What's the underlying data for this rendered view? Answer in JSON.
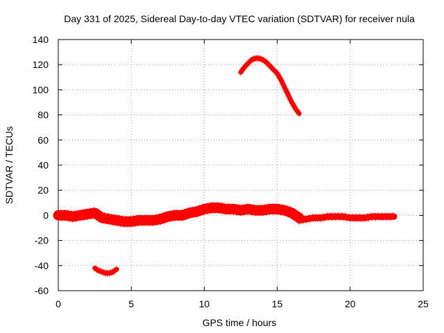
{
  "chart_data": {
    "type": "line",
    "title": "Day 331 of 2025, Sidereal Day-to-day VTEC variation (SDTVAR) for receiver nula",
    "xlabel": "GPS time / hours",
    "ylabel": "SDTVAR / TECUs",
    "xlim": [
      0,
      25
    ],
    "ylim": [
      -60,
      140
    ],
    "xticks": [
      0,
      5,
      10,
      15,
      20,
      25
    ],
    "yticks": [
      -60,
      -40,
      -20,
      0,
      20,
      40,
      60,
      80,
      100,
      120,
      140
    ],
    "xtick_labels": [
      "0",
      "5",
      "10",
      "15",
      "20",
      "25"
    ],
    "ytick_labels": [
      "-60",
      "-40",
      "-20",
      "0",
      "20",
      "40",
      "60",
      "80",
      "100",
      "120",
      "140"
    ],
    "grid": true,
    "legend": "none",
    "marker": "plus",
    "series_color": "#ff0000",
    "series": [
      {
        "name": "main-track",
        "x": [
          0,
          0.5,
          1.0,
          1.5,
          2.0,
          2.5,
          3.0,
          3.5,
          4.0,
          4.5,
          5.0,
          5.5,
          6.0,
          6.5,
          7.0,
          7.5,
          8.0,
          8.5,
          9.0,
          9.5,
          10.0,
          10.5,
          11.0,
          11.5,
          12.0,
          12.5,
          13.0,
          13.5,
          14.0,
          14.5,
          15.0,
          15.5,
          16.0,
          16.5
        ],
        "y": [
          0,
          0,
          -1,
          0,
          1,
          2,
          -2,
          -3,
          -4,
          -5,
          -5,
          -4,
          -4,
          -4,
          -3,
          -1,
          0,
          0,
          2,
          3,
          5,
          6,
          6,
          5,
          5,
          4,
          5,
          4,
          4,
          5,
          5,
          4,
          2,
          -2
        ],
        "spread": 3
      },
      {
        "name": "late-track",
        "x": [
          16.5,
          17.0,
          17.5,
          18.0,
          18.5,
          19.0,
          19.5,
          20.0,
          20.5,
          21.0,
          21.5,
          22.0,
          22.5,
          23.0
        ],
        "y": [
          -4,
          -3,
          -2,
          -2,
          -1,
          -1,
          -1,
          -2,
          -2,
          -2,
          -1,
          -1,
          -1,
          -1
        ],
        "spread": 1.5
      },
      {
        "name": "arc-high",
        "x": [
          12.5,
          12.75,
          13.0,
          13.25,
          13.5,
          13.75,
          14.0,
          14.25,
          14.5,
          14.75,
          15.0,
          15.25,
          15.5,
          15.75,
          16.0,
          16.25,
          16.5
        ],
        "y": [
          114,
          118,
          121,
          124,
          125,
          125,
          124,
          122,
          119,
          116,
          113,
          108,
          102,
          96,
          90,
          85,
          81
        ],
        "spread": 0.8
      },
      {
        "name": "arc-low",
        "x": [
          2.5,
          2.75,
          3.0,
          3.25,
          3.5,
          3.75,
          4.0
        ],
        "y": [
          -42,
          -44,
          -45,
          -46,
          -46,
          -45,
          -43
        ],
        "spread": 0.8
      }
    ]
  }
}
